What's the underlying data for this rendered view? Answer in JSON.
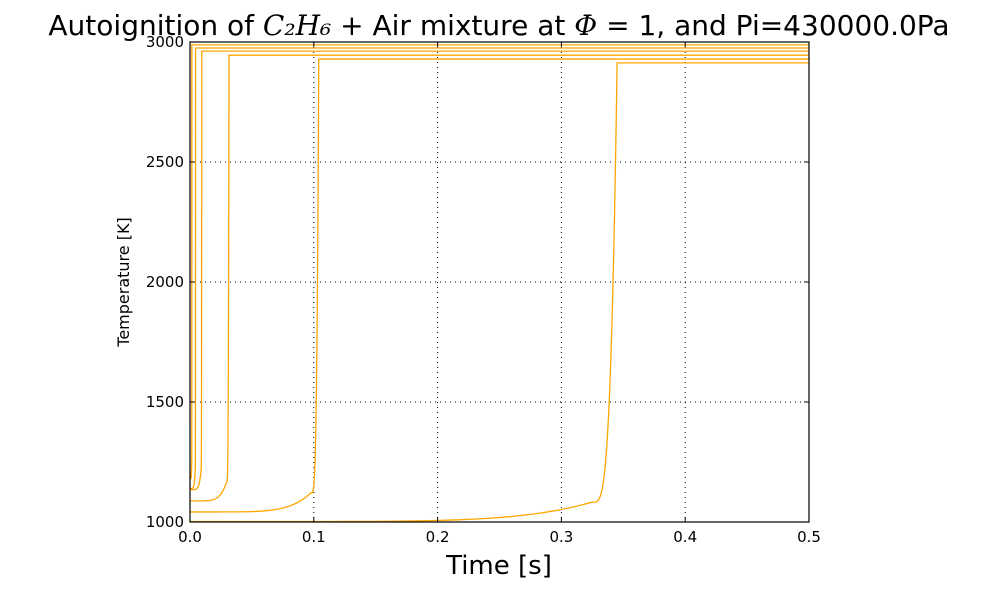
{
  "chart_data": {
    "type": "line",
    "title": {
      "prefix": "Autoignition of ",
      "formula": "C₂H₆",
      "middle": " + Air mixture at ",
      "phi": "Φ",
      "suffix": " = 1, and Pi=430000.0Pa"
    },
    "xlabel": "Time [s]",
    "ylabel": "Temperature [K]",
    "xlim": [
      0.0,
      0.5
    ],
    "ylim": [
      1000,
      3000
    ],
    "xticks": [
      {
        "v": 0.0,
        "label": "0.0"
      },
      {
        "v": 0.1,
        "label": "0.1"
      },
      {
        "v": 0.2,
        "label": "0.2"
      },
      {
        "v": 0.3,
        "label": "0.3"
      },
      {
        "v": 0.4,
        "label": "0.4"
      },
      {
        "v": 0.5,
        "label": "0.5"
      }
    ],
    "yticks": [
      {
        "v": 1000,
        "label": "1000"
      },
      {
        "v": 1500,
        "label": "1500"
      },
      {
        "v": 2000,
        "label": "2000"
      },
      {
        "v": 2500,
        "label": "2500"
      },
      {
        "v": 3000,
        "label": "3000"
      }
    ],
    "grid": true,
    "color": "#FFA500",
    "series": [
      {
        "t_ign": 0.0015,
        "T0": 1180,
        "Tf": 2988
      },
      {
        "t_ign": 0.0045,
        "T0": 1140,
        "Tf": 2975
      },
      {
        "t_ign": 0.0095,
        "T0": 1135,
        "Tf": 2962
      },
      {
        "t_ign": 0.0315,
        "T0": 1088,
        "Tf": 2945
      },
      {
        "t_ign": 0.104,
        "T0": 1042,
        "Tf": 2929
      },
      {
        "t_ign": 0.345,
        "T0": 1002,
        "Tf": 2913
      }
    ]
  }
}
